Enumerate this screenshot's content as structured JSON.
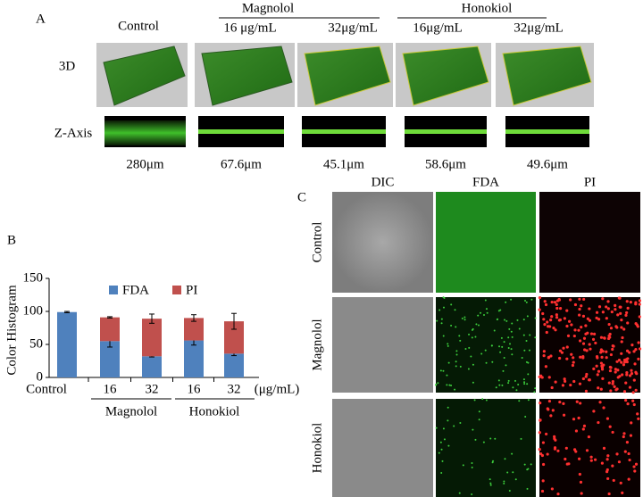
{
  "panel_a": {
    "label": "A",
    "groups": [
      "Magnolol",
      "Honokiol"
    ],
    "columns": [
      "Control",
      "16 μg/mL",
      "32μg/mL",
      "16μg/mL",
      "32μg/mL"
    ],
    "rows": [
      "3D",
      "Z-Axis"
    ],
    "thickness": [
      "280μm",
      "67.6μm",
      "45.1μm",
      "58.6μm",
      "49.6μm"
    ]
  },
  "chart_data": {
    "type": "stacked-bar",
    "panel_label": "B",
    "ylabel": "Color Histogram",
    "categories": [
      "Control",
      "16",
      "32",
      "16",
      "32"
    ],
    "unit_label": "(μg/mL)",
    "groups": [
      "Magnolol",
      "Honokiol"
    ],
    "series": [
      {
        "name": "FDA",
        "color": "#4f81bd",
        "values": [
          99,
          55,
          32,
          56,
          36
        ],
        "errors": [
          1,
          9,
          1,
          7,
          3
        ]
      },
      {
        "name": "PI",
        "color": "#c0504d",
        "values": [
          0,
          36,
          57,
          34,
          49
        ],
        "errors": [
          null,
          1,
          7,
          5,
          12
        ]
      }
    ],
    "ylim": [
      0,
      150
    ],
    "yticks": [
      0,
      50,
      100,
      150
    ]
  },
  "panel_c": {
    "label": "C",
    "columns": [
      "DIC",
      "FDA",
      "PI"
    ],
    "rows": [
      "Control",
      "Magnolol",
      "Honokiol"
    ]
  }
}
